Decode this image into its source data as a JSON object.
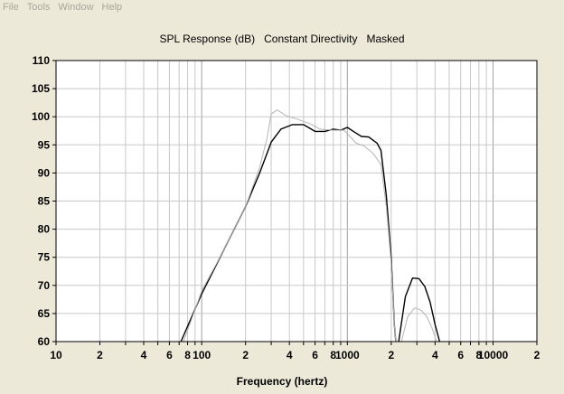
{
  "menu": {
    "items": [
      "File",
      "Tools",
      "Window",
      "Help"
    ]
  },
  "colors": {
    "background": "#ece9d8",
    "plot_background": "#ffffff",
    "grid": "#c8c8c8",
    "series_main": "#000000",
    "series_secondary": "#b4b4b4",
    "menu_text": "#a7a79a"
  },
  "chart_data": {
    "type": "line",
    "title": "SPL Response (dB)   Constant Directivity   Masked",
    "xlabel": "Frequency (hertz)",
    "ylabel": "",
    "xscale": "log",
    "xlim": [
      10,
      20000
    ],
    "ylim": [
      60,
      110
    ],
    "grid": true,
    "x_tick_labels": [
      {
        "value": 10,
        "label": "10"
      },
      {
        "value": 20,
        "label": "2"
      },
      {
        "value": 40,
        "label": "4"
      },
      {
        "value": 60,
        "label": "6"
      },
      {
        "value": 80,
        "label": "8"
      },
      {
        "value": 100,
        "label": "100"
      },
      {
        "value": 200,
        "label": "2"
      },
      {
        "value": 400,
        "label": "4"
      },
      {
        "value": 600,
        "label": "6"
      },
      {
        "value": 800,
        "label": "8"
      },
      {
        "value": 1000,
        "label": "1000"
      },
      {
        "value": 2000,
        "label": "2"
      },
      {
        "value": 4000,
        "label": "4"
      },
      {
        "value": 6000,
        "label": "6"
      },
      {
        "value": 8000,
        "label": "8"
      },
      {
        "value": 10000,
        "label": "10000"
      },
      {
        "value": 20000,
        "label": "2"
      }
    ],
    "y_ticks": [
      60,
      65,
      70,
      75,
      80,
      85,
      90,
      95,
      100,
      105,
      110
    ],
    "series": [
      {
        "color": "#000000",
        "segments": [
          [
            [
              72,
              60
            ],
            [
              100,
              68.5
            ],
            [
              140,
              76
            ],
            [
              200,
              84
            ],
            [
              250,
              90
            ],
            [
              300,
              95.5
            ],
            [
              350,
              97.8
            ],
            [
              420,
              98.6
            ],
            [
              500,
              98.6
            ],
            [
              600,
              97.4
            ],
            [
              700,
              97.4
            ],
            [
              800,
              97.8
            ],
            [
              900,
              97.6
            ],
            [
              1000,
              98.1
            ],
            [
              1100,
              97.4
            ],
            [
              1250,
              96.5
            ],
            [
              1400,
              96.4
            ],
            [
              1600,
              95.3
            ],
            [
              1700,
              94
            ],
            [
              1850,
              86
            ],
            [
              2000,
              75
            ],
            [
              2100,
              63
            ],
            [
              2150,
              60
            ]
          ],
          [
            [
              2250,
              60
            ],
            [
              2500,
              68
            ],
            [
              2800,
              71.3
            ],
            [
              3100,
              71.2
            ],
            [
              3400,
              69.8
            ],
            [
              3700,
              67
            ],
            [
              4000,
              63
            ],
            [
              4300,
              60
            ]
          ]
        ]
      },
      {
        "color": "#b4b4b4",
        "segments": [
          [
            [
              75,
              60
            ],
            [
              100,
              69
            ],
            [
              140,
              76
            ],
            [
              200,
              84
            ],
            [
              250,
              91
            ],
            [
              280,
              96
            ],
            [
              300,
              100.5
            ],
            [
              330,
              101.2
            ],
            [
              380,
              100.2
            ],
            [
              450,
              99.6
            ],
            [
              550,
              98.8
            ],
            [
              650,
              97.8
            ],
            [
              800,
              97.6
            ],
            [
              950,
              97.6
            ],
            [
              1050,
              96.4
            ],
            [
              1150,
              95.3
            ],
            [
              1300,
              94.8
            ],
            [
              1500,
              93.5
            ],
            [
              1700,
              91.5
            ],
            [
              1850,
              84
            ],
            [
              2000,
              74
            ],
            [
              2100,
              63
            ],
            [
              2150,
              60
            ]
          ],
          [
            [
              2350,
              60
            ],
            [
              2600,
              64.5
            ],
            [
              2900,
              66
            ],
            [
              3200,
              65.6
            ],
            [
              3500,
              64.5
            ],
            [
              3800,
              62.5
            ],
            [
              4100,
              60
            ]
          ]
        ]
      }
    ]
  }
}
